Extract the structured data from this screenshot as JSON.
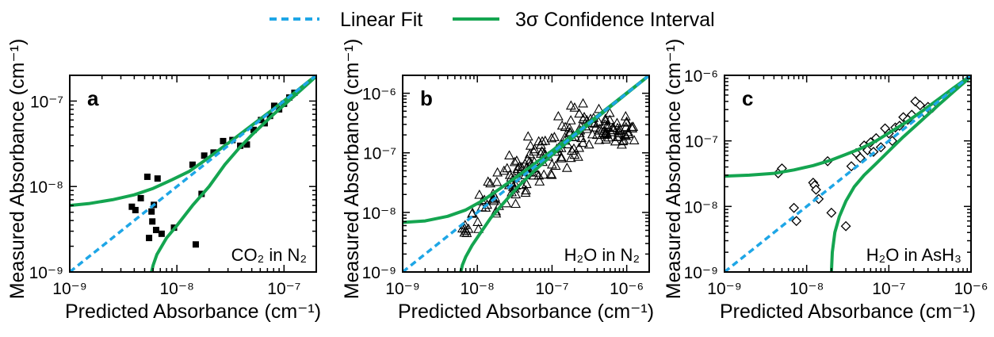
{
  "legend": {
    "linear_fit_label": "Linear Fit",
    "ci_label": "3σ Confidence Interval",
    "linear_fit_color": "#1EA6E6",
    "ci_color": "#14A550"
  },
  "axes_text": {
    "xlabel": "Predicted Absorbance (cm⁻¹)",
    "ylabel": "Measured Absorbance (cm⁻¹)"
  },
  "chart_data": [
    {
      "type": "scatter",
      "panel_label": "a",
      "annotation": "CO₂ in N₂",
      "marker": "filled-square",
      "xscale": "log",
      "yscale": "log",
      "xlim": [
        1e-09,
        2e-07
      ],
      "ylim": [
        1e-09,
        2e-07
      ],
      "xticks": [
        1e-09,
        1e-08,
        1e-07
      ],
      "xtick_labels": [
        "10⁻⁹",
        "10⁻⁸",
        "10⁻⁷"
      ],
      "yticks": [
        1e-09,
        1e-08,
        1e-07
      ],
      "ytick_labels": [
        "10⁻⁹",
        "10⁻⁸",
        "10⁻⁷"
      ],
      "xlabel": "Predicted Absorbance (cm⁻¹)",
      "ylabel": "Measured Absorbance (cm⁻¹)",
      "linear_fit": {
        "x": [
          1e-09,
          2e-07
        ],
        "y": [
          1e-09,
          2e-07
        ]
      },
      "ci_upper": {
        "x": [
          1e-09,
          1.5e-09,
          2.5e-09,
          4e-09,
          6e-09,
          9e-09,
          1.3e-08,
          1.8e-08,
          2.5e-08,
          3.5e-08,
          5e-08,
          8e-08,
          1.2e-07,
          2e-07
        ],
        "y": [
          6e-09,
          6.3e-09,
          7e-09,
          8e-09,
          9.5e-09,
          1.2e-08,
          1.5e-08,
          2e-08,
          2.7e-08,
          3.7e-08,
          5.2e-08,
          8.1e-08,
          1.2e-07,
          2e-07
        ]
      },
      "ci_lower": {
        "x": [
          5.8e-09,
          6e-09,
          6.5e-09,
          8e-09,
          1e-08,
          1.4e-08,
          2e-08,
          2.8e-08,
          3.8e-08,
          5e-08,
          8e-08,
          1.2e-07,
          2e-07
        ],
        "y": [
          1e-09,
          1.2e-09,
          1.6e-09,
          2.5e-09,
          3.5e-09,
          6e-09,
          1e-08,
          1.8e-08,
          2.8e-08,
          4e-08,
          7e-08,
          1.1e-07,
          1.95e-07
        ]
      },
      "points": {
        "x": [
          3.8e-09,
          4.1e-09,
          4.6e-09,
          5.3e-09,
          5.5e-09,
          5.8e-09,
          5.9e-09,
          6.1e-09,
          6.4e-09,
          6.6e-09,
          7.2e-09,
          9.4e-09,
          1.4e-08,
          1.5e-08,
          1.7e-08,
          1.8e-08,
          2.2e-08,
          2.7e-08,
          3.3e-08,
          3.9e-08,
          4.5e-08,
          5.2e-08,
          6.1e-08,
          6.6e-08,
          7.4e-08,
          8.1e-08,
          9e-08,
          1e-07,
          1.12e-07,
          1.25e-07
        ],
        "y": [
          5.8e-09,
          5.3e-09,
          7.3e-09,
          1.3e-08,
          2.5e-09,
          5.1e-09,
          3.9e-09,
          6.1e-09,
          3.1e-09,
          1.24e-08,
          2.8e-09,
          3.3e-09,
          1.8e-08,
          2.1e-09,
          8.2e-09,
          2.3e-08,
          2.5e-08,
          3.4e-08,
          3.5e-08,
          3e-08,
          3.1e-08,
          4.6e-08,
          6e-08,
          5.5e-08,
          6.7e-08,
          8.8e-08,
          8e-08,
          9.3e-08,
          1.1e-07,
          1.25e-07
        ]
      }
    },
    {
      "type": "scatter",
      "panel_label": "b",
      "annotation": "H₂O in N₂",
      "marker": "open-triangle",
      "xscale": "log",
      "yscale": "log",
      "xlim": [
        1e-09,
        2e-06
      ],
      "ylim": [
        1e-09,
        2e-06
      ],
      "xticks": [
        1e-09,
        1e-08,
        1e-07,
        1e-06
      ],
      "xtick_labels": [
        "10⁻⁹",
        "10⁻⁸",
        "10⁻⁷",
        "10⁻⁶"
      ],
      "yticks": [
        1e-09,
        1e-08,
        1e-07,
        1e-06
      ],
      "ytick_labels": [
        "10⁻⁹",
        "10⁻⁸",
        "10⁻⁷",
        "10⁻⁶"
      ],
      "xlabel": "Predicted Absorbance (cm⁻¹)",
      "ylabel": "Measured Absorbance (cm⁻¹)",
      "linear_fit": {
        "x": [
          1e-09,
          2e-06
        ],
        "y": [
          1e-09,
          2e-06
        ]
      },
      "ci_upper": {
        "x": [
          1e-09,
          2e-09,
          4e-09,
          7e-09,
          1.2e-08,
          2e-08,
          3.5e-08,
          6e-08,
          1e-07,
          2e-07,
          4e-07,
          8e-07,
          2e-06
        ],
        "y": [
          6.8e-09,
          7.2e-09,
          8.6e-09,
          1.1e-08,
          1.6e-08,
          2.5e-08,
          4.1e-08,
          6.7e-08,
          1.08e-07,
          2.1e-07,
          4.1e-07,
          8.1e-07,
          2e-06
        ]
      },
      "ci_lower": {
        "x": [
          6e-09,
          6.3e-09,
          7e-09,
          8.5e-09,
          1.1e-08,
          1.5e-08,
          2.2e-08,
          3.5e-08,
          6e-08,
          1e-07,
          2e-07,
          4e-07,
          8e-07,
          2e-06
        ],
        "y": [
          1e-09,
          1.3e-09,
          1.8e-09,
          2.8e-09,
          4.5e-09,
          8e-09,
          1.4e-08,
          2.7e-08,
          5.2e-08,
          9.2e-08,
          1.9e-07,
          3.9e-07,
          7.9e-07,
          2e-06
        ]
      }
    },
    {
      "type": "scatter",
      "panel_label": "c",
      "annotation": "H₂O in AsH₃",
      "marker": "open-diamond",
      "xscale": "log",
      "yscale": "log",
      "xlim": [
        1e-09,
        1e-06
      ],
      "ylim": [
        1e-09,
        1e-06
      ],
      "xticks": [
        1e-09,
        1e-08,
        1e-07,
        1e-06
      ],
      "xtick_labels": [
        "10⁻⁹",
        "10⁻⁸",
        "10⁻⁷",
        "10⁻⁶"
      ],
      "yticks": [
        1e-09,
        1e-08,
        1e-07,
        1e-06
      ],
      "ytick_labels": [
        "10⁻⁹",
        "10⁻⁸",
        "10⁻⁷",
        "10⁻⁶"
      ],
      "xlabel": "Predicted Absorbance (cm⁻¹)",
      "ylabel": "Measured Absorbance (cm⁻¹)",
      "linear_fit": {
        "x": [
          1e-09,
          1e-06
        ],
        "y": [
          1e-09,
          1e-06
        ]
      },
      "ci_upper": {
        "x": [
          1e-09,
          2e-09,
          4e-09,
          7e-09,
          1.2e-08,
          2e-08,
          3e-08,
          4.5e-08,
          7e-08,
          1e-07,
          1.6e-07,
          2.5e-07,
          4e-07,
          6e-07,
          1e-06
        ],
        "y": [
          2.9e-08,
          3e-08,
          3.2e-08,
          3.6e-08,
          4.2e-08,
          5.1e-08,
          6.2e-08,
          7.6e-08,
          1e-07,
          1.32e-07,
          1.9e-07,
          2.8e-07,
          4.3e-07,
          6.3e-07,
          1e-06
        ]
      },
      "ci_lower": {
        "x": [
          2e-08,
          2.05e-08,
          2.2e-08,
          2.5e-08,
          3e-08,
          3.8e-08,
          5e-08,
          7e-08,
          1e-07,
          1.5e-07,
          2.5e-07,
          4e-07,
          6e-07,
          1e-06
        ],
        "y": [
          1e-09,
          2e-09,
          4e-09,
          7e-09,
          1.2e-08,
          2e-08,
          3e-08,
          4.5e-08,
          7e-08,
          1.15e-07,
          2.05e-07,
          3.5e-07,
          5.5e-07,
          9.6e-07
        ]
      },
      "points": {
        "x": [
          4.5e-09,
          5e-09,
          7e-09,
          7.5e-09,
          1.2e-08,
          1.25e-08,
          1.3e-08,
          1.4e-08,
          1.8e-08,
          2e-08,
          3e-08,
          3.5e-08,
          4e-08,
          4.5e-08,
          5e-08,
          5.5e-08,
          6e-08,
          6.5e-08,
          7e-08,
          8e-08,
          9e-08,
          1e-07,
          1.1e-07,
          1.2e-07,
          1.35e-07,
          1.5e-07,
          1.7e-07,
          1.9e-07,
          2.1e-07,
          2.4e-07,
          2.7e-07,
          3e-07,
          3.4e-07
        ],
        "y": [
          3.2e-08,
          3.8e-08,
          9.5e-09,
          6e-09,
          2.3e-08,
          2.1e-08,
          1.8e-08,
          1.3e-08,
          4.9e-08,
          8e-09,
          5e-09,
          4.1e-08,
          6.5e-08,
          5.5e-08,
          8.5e-08,
          7.2e-08,
          9.5e-08,
          6.8e-08,
          1.1e-07,
          8e-08,
          1.55e-07,
          1.3e-07,
          1e-07,
          1.6e-07,
          1.7e-07,
          2.3e-07,
          2.1e-07,
          2.5e-07,
          4e-07,
          3.5e-07,
          2.7e-07,
          3.3e-07,
          3.2e-07
        ]
      }
    }
  ]
}
